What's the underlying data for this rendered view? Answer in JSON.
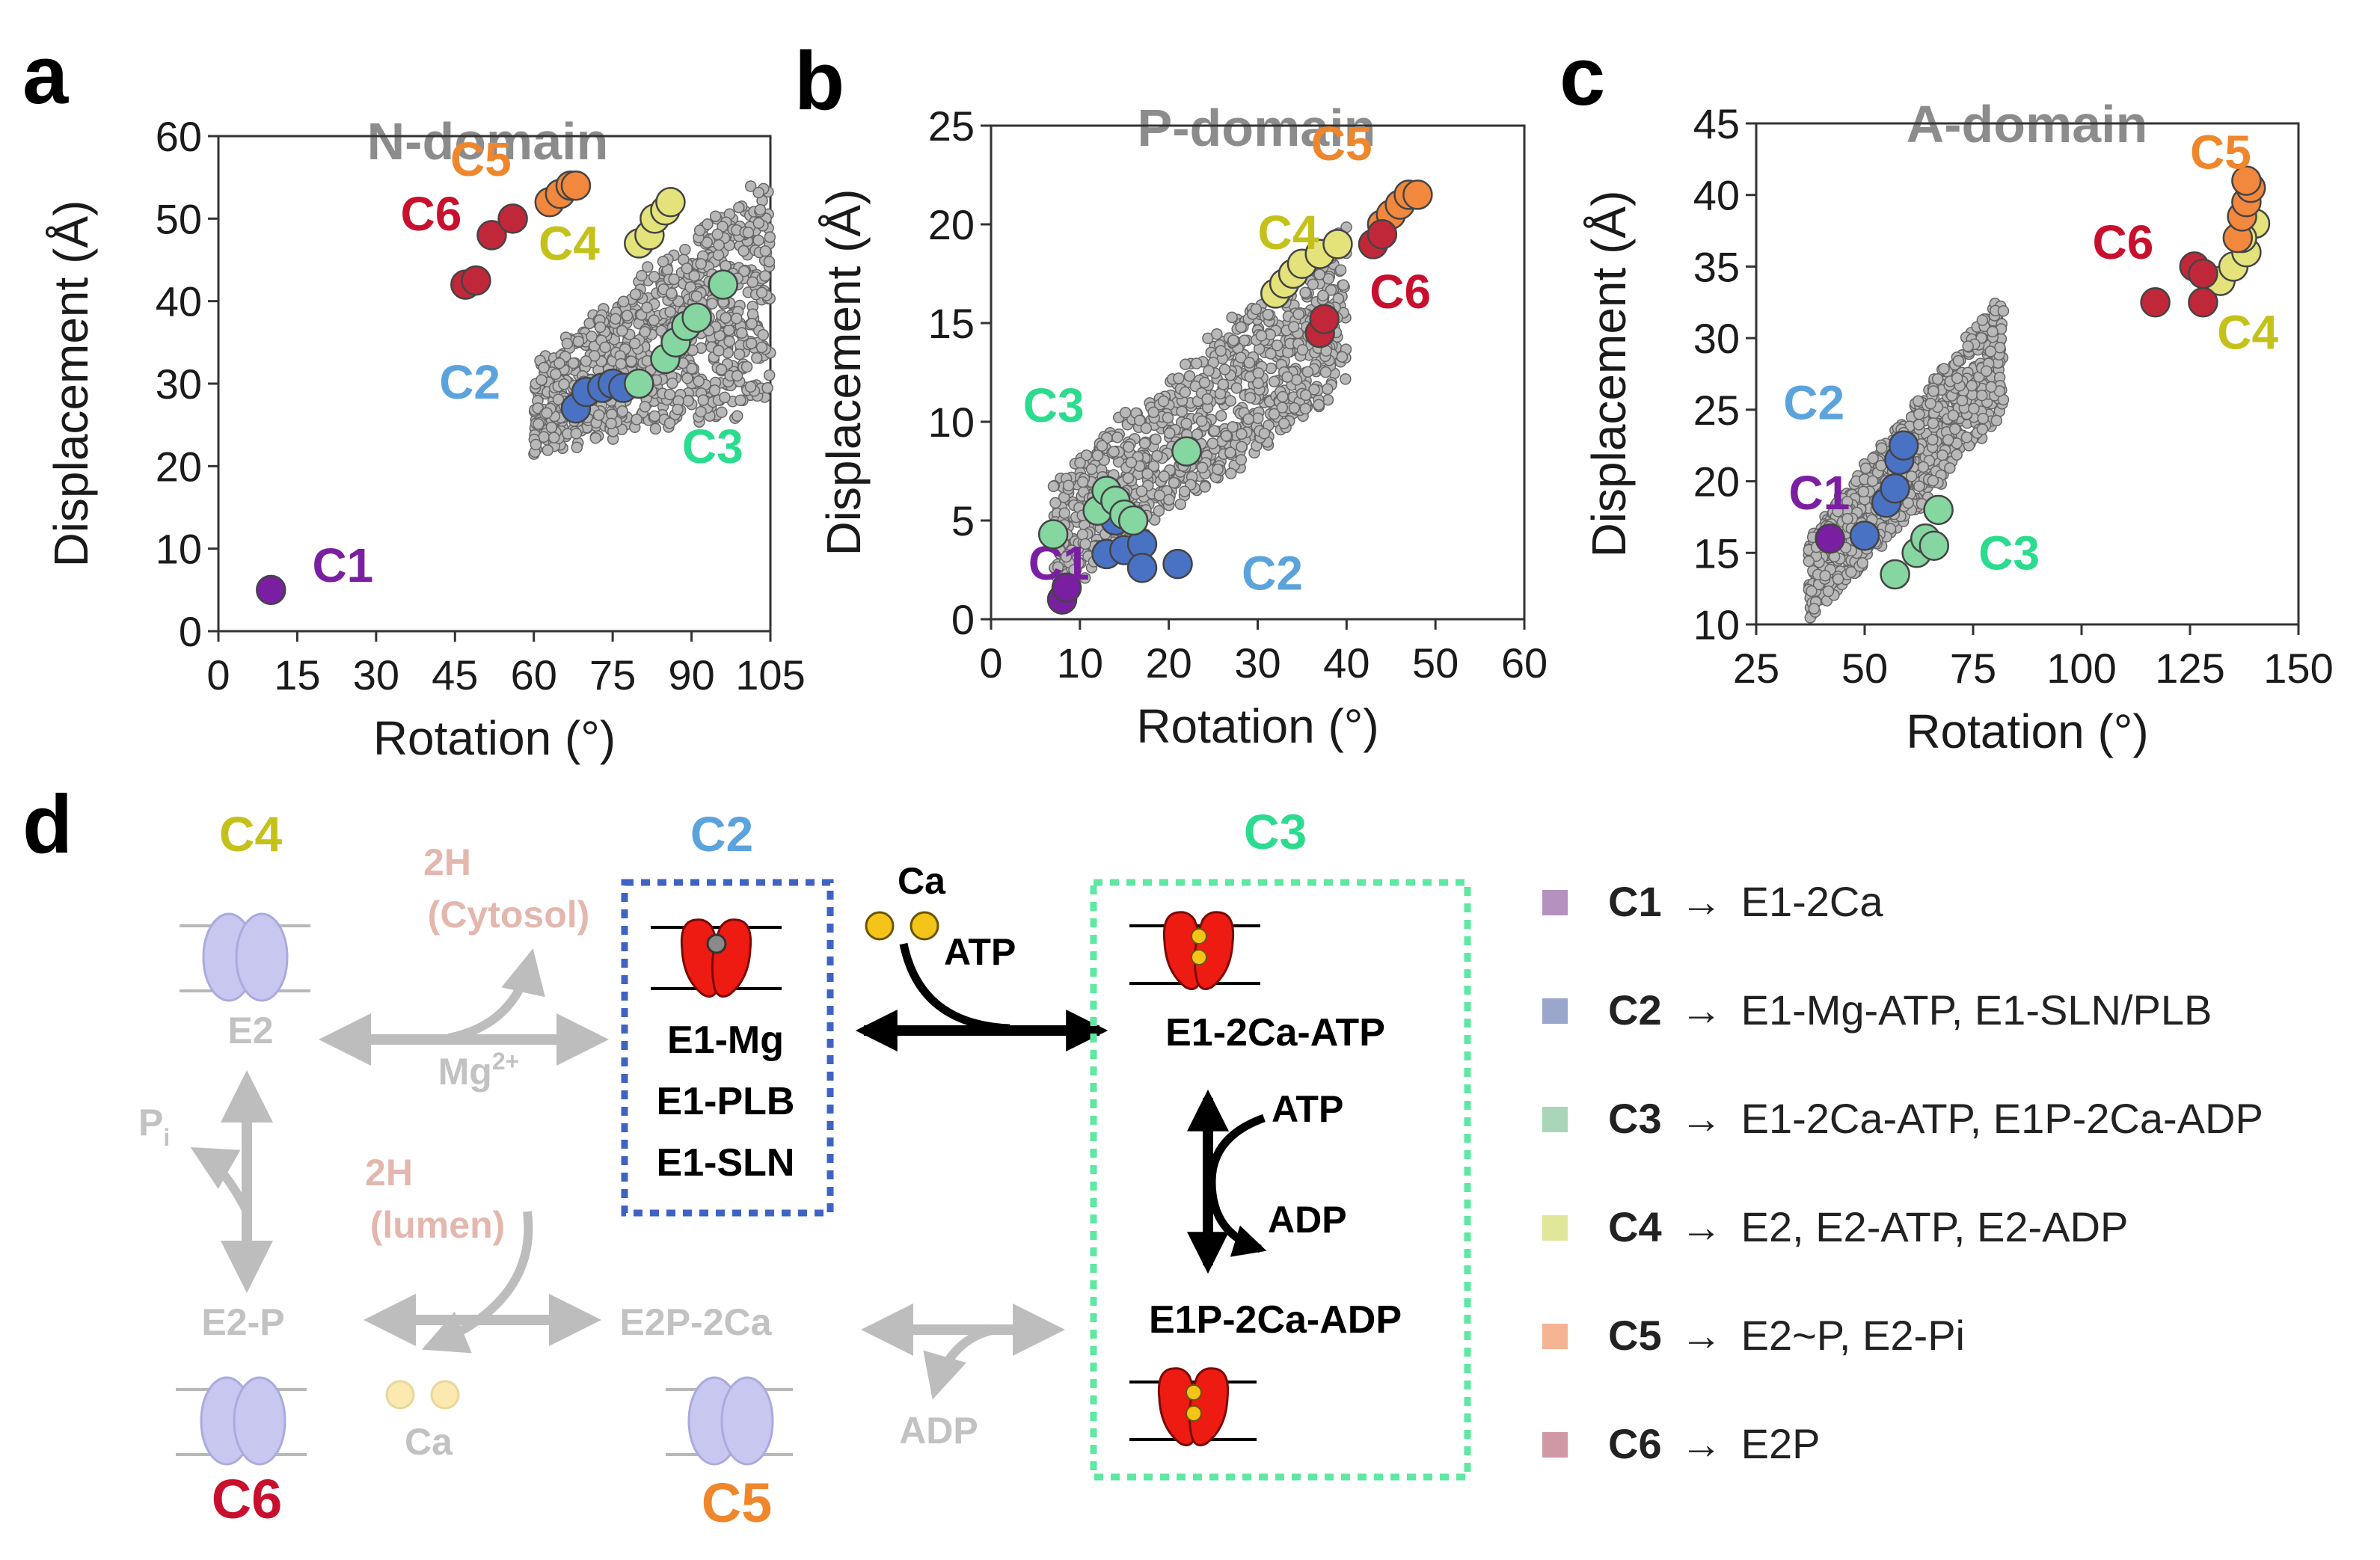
{
  "panel_labels": {
    "a": "a",
    "b": "b",
    "c": "c",
    "d": "d"
  },
  "colors": {
    "C1": "#7a1fa2",
    "C2": "#4a72c4",
    "C3": "#85d6a1",
    "C4": "#e4e27a",
    "C5": "#f2883d",
    "C6": "#c0283a",
    "cloud": "#9a9a9a"
  },
  "label_colors": {
    "C1": "#7a1fa2",
    "C2": "#5ba3dc",
    "C3": "#2bdc8e",
    "C4": "#c4c21a",
    "C5": "#f0862b",
    "C6": "#c8102e"
  },
  "chart_data": [
    {
      "type": "scatter",
      "title": "N-domain",
      "xlabel": "Rotation (°)",
      "ylabel": "Displacement (Å)",
      "xlim": [
        0,
        105
      ],
      "ylim": [
        0,
        60
      ],
      "xticks": [
        "0",
        "15",
        "30",
        "45",
        "60",
        "75",
        "90",
        "105"
      ],
      "yticks": [
        "0",
        "10",
        "20",
        "30",
        "40",
        "50",
        "60"
      ],
      "cloud": {
        "x": [
          60,
          105
        ],
        "y_low_at_min": 22,
        "y_high_at_min": 32,
        "y_low_at_max": 28,
        "y_high_at_max": 55
      },
      "series": [
        {
          "name": "C1",
          "points": [
            [
              10,
              5
            ]
          ]
        },
        {
          "name": "C2",
          "points": [
            [
              68,
              27
            ],
            [
              70,
              29
            ],
            [
              73,
              29.5
            ],
            [
              75,
              30
            ],
            [
              77,
              29.5
            ]
          ]
        },
        {
          "name": "C3",
          "points": [
            [
              80,
              30
            ],
            [
              85,
              33
            ],
            [
              87,
              35
            ],
            [
              89,
              37
            ],
            [
              91,
              38
            ],
            [
              96,
              42
            ]
          ]
        },
        {
          "name": "C4",
          "points": [
            [
              80,
              47
            ],
            [
              82,
              48
            ],
            [
              83,
              50
            ],
            [
              85,
              51
            ],
            [
              86,
              52
            ]
          ]
        },
        {
          "name": "C5",
          "points": [
            [
              63,
              52
            ],
            [
              65,
              53
            ],
            [
              67,
              54
            ],
            [
              68,
              54
            ]
          ]
        },
        {
          "name": "C6",
          "points": [
            [
              47,
              42
            ],
            [
              49,
              42.5
            ],
            [
              52,
              48
            ],
            [
              56,
              50
            ]
          ]
        }
      ],
      "series_labels": {
        "C1": "C1",
        "C2": "C2",
        "C3": "C3",
        "C4": "C4",
        "C5": "C5",
        "C6": "C6"
      }
    },
    {
      "type": "scatter",
      "title": "P-domain",
      "xlabel": "Rotation (°)",
      "ylabel": "Displacement (Å)",
      "xlim": [
        0,
        60
      ],
      "ylim": [
        0,
        25
      ],
      "xticks": [
        "0",
        "10",
        "20",
        "30",
        "40",
        "50",
        "60"
      ],
      "yticks": [
        "0",
        "5",
        "10",
        "15",
        "20",
        "25"
      ],
      "cloud": {
        "x": [
          7,
          40
        ],
        "y_low_at_min": 1,
        "y_high_at_min": 7,
        "y_low_at_max": 12,
        "y_high_at_max": 20
      },
      "series": [
        {
          "name": "C1",
          "points": [
            [
              8,
              1
            ],
            [
              8.5,
              1.6
            ]
          ]
        },
        {
          "name": "C2",
          "points": [
            [
              13,
              3.3
            ],
            [
              15,
              3.5
            ],
            [
              17,
              3.8
            ],
            [
              17,
              2.6
            ],
            [
              21,
              2.8
            ],
            [
              14,
              5
            ]
          ]
        },
        {
          "name": "C3",
          "points": [
            [
              7,
              4.3
            ],
            [
              12,
              5.5
            ],
            [
              13,
              6.5
            ],
            [
              14,
              6
            ],
            [
              15,
              5.3
            ],
            [
              16,
              5
            ],
            [
              22,
              8.5
            ]
          ]
        },
        {
          "name": "C4",
          "points": [
            [
              32,
              16.5
            ],
            [
              33,
              17
            ],
            [
              34,
              17.5
            ],
            [
              35,
              18
            ],
            [
              37,
              18.5
            ],
            [
              39,
              19
            ]
          ]
        },
        {
          "name": "C5",
          "points": [
            [
              44,
              20
            ],
            [
              45,
              20.5
            ],
            [
              46,
              21
            ],
            [
              47,
              21.5
            ],
            [
              48,
              21.5
            ]
          ]
        },
        {
          "name": "C6",
          "points": [
            [
              37,
              14.5
            ],
            [
              37.5,
              15.2
            ],
            [
              43,
              19
            ],
            [
              44,
              19.5
            ]
          ]
        }
      ],
      "series_labels": {
        "C1": "C1",
        "C2": "C2",
        "C3": "C3",
        "C4": "C4",
        "C5": "C5",
        "C6": "C6"
      }
    },
    {
      "type": "scatter",
      "title": "A-domain",
      "xlabel": "Rotation (°)",
      "ylabel": "Displacement (Å)",
      "xlim": [
        25,
        150
      ],
      "ylim": [
        10,
        45
      ],
      "xticks": [
        "25",
        "50",
        "75",
        "100",
        "125",
        "150"
      ],
      "yticks": [
        "10",
        "15",
        "20",
        "25",
        "30",
        "35",
        "40",
        "45"
      ],
      "cloud": {
        "x": [
          37,
          82
        ],
        "y_low_at_min": 10,
        "y_high_at_min": 16,
        "y_low_at_max": 25,
        "y_high_at_max": 33
      },
      "series": [
        {
          "name": "C1",
          "points": [
            [
              42,
              16
            ]
          ]
        },
        {
          "name": "C2",
          "points": [
            [
              50,
              16.2
            ],
            [
              55,
              18.5
            ],
            [
              57,
              19.5
            ],
            [
              58,
              21.5
            ],
            [
              59,
              22.5
            ]
          ]
        },
        {
          "name": "C3",
          "points": [
            [
              57,
              13.5
            ],
            [
              62,
              15
            ],
            [
              64,
              16
            ],
            [
              66,
              15.5
            ],
            [
              67,
              18
            ]
          ]
        },
        {
          "name": "C4",
          "points": [
            [
              132,
              34
            ],
            [
              135,
              35
            ],
            [
              138,
              36
            ],
            [
              140,
              38
            ],
            [
              137,
              37
            ]
          ]
        },
        {
          "name": "C5",
          "points": [
            [
              136,
              37
            ],
            [
              137,
              38.5
            ],
            [
              138,
              39.5
            ],
            [
              139,
              40.5
            ],
            [
              138,
              41
            ]
          ]
        },
        {
          "name": "C6",
          "points": [
            [
              117,
              32.5
            ],
            [
              126,
              35
            ],
            [
              128,
              32.5
            ],
            [
              128,
              34.5
            ]
          ]
        }
      ],
      "series_labels": {
        "C1": "C1",
        "C2": "C2",
        "C3": "C3",
        "C4": "C4",
        "C5": "C5",
        "C6": "C6"
      }
    }
  ],
  "scheme": {
    "C4": "C4",
    "C2": "C2",
    "C3": "C3",
    "C6": "C6",
    "C5": "C5",
    "E2": "E2",
    "E2P": "E2-P",
    "E2P2Ca": "E2P-2Ca",
    "h_cytosol_1": "2H",
    "h_cytosol_2": "(Cytosol)",
    "h_lumen_1": "2H",
    "h_lumen_2": "(lumen)",
    "mg_base": "Mg",
    "mg_sup": "2+",
    "pi_base": "P",
    "pi_sub": "i",
    "ca_faded": "Ca",
    "adp_faded": "ADP",
    "c2_states": [
      "E1-Mg",
      "E1-PLB",
      "E1-SLN"
    ],
    "ca_top": "Ca",
    "atp_top": "ATP",
    "c3_top": "E1-2Ca-ATP",
    "c3_bottom": "E1P-2Ca-ADP",
    "atp_mid": "ATP",
    "adp_mid": "ADP"
  },
  "legend": [
    {
      "key": "C1",
      "text": "E1-2Ca",
      "color": "#b591c0"
    },
    {
      "key": "C2",
      "text": "E1-Mg-ATP, E1-SLN/PLB",
      "color": "#9aa6cc"
    },
    {
      "key": "C3",
      "text": "E1-2Ca-ATP, E1P-2Ca-ADP",
      "color": "#a9d6b8"
    },
    {
      "key": "C4",
      "text": "E2, E2-ATP, E2-ADP",
      "color": "#e0e79a"
    },
    {
      "key": "C5",
      "text": "E2~P, E2-Pi",
      "color": "#f4b393"
    },
    {
      "key": "C6",
      "text": "E2P",
      "color": "#cf98a4"
    }
  ],
  "legend_arrow": "→"
}
